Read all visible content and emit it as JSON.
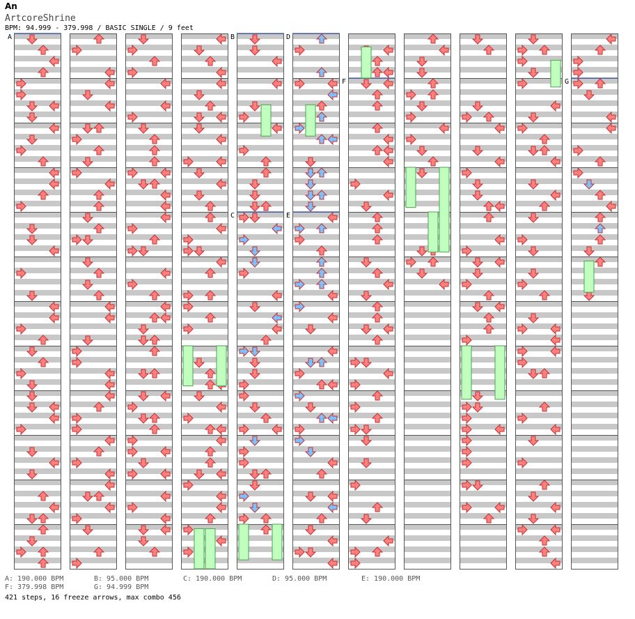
{
  "header": {
    "title": "An",
    "artist": "ArtcoreShrine",
    "info": "BPM: 94.999 - 379.998 / BASIC SINGLE / 9 feet"
  },
  "columns": 11,
  "measures_per_column": 12,
  "section_markers": [
    {
      "label": "A",
      "col": 0,
      "measure": 0
    },
    {
      "label": "B",
      "col": 4,
      "measure": 0
    },
    {
      "label": "D",
      "col": 5,
      "measure": 0
    },
    {
      "label": "F",
      "col": 6,
      "measure": 1
    },
    {
      "label": "G",
      "col": 10,
      "measure": 1
    },
    {
      "label": "C",
      "col": 4,
      "measure": 4
    },
    {
      "label": "E",
      "col": 5,
      "measure": 4
    }
  ],
  "bpm_legend": [
    [
      "A: 190.000 BPM",
      "B: 95.000 BPM",
      "C: 190.000 BPM",
      "D: 95.000 BPM",
      "E: 190.000 BPM"
    ],
    [
      "F: 379.998 BPM",
      "G: 94.999 BPM"
    ]
  ],
  "summary": "421 steps, 16 freeze arrows, max combo 456",
  "colors": {
    "arrow_red": "#ff8080",
    "arrow_blue": "#80c0ff",
    "arrow_pink": "#ffa0ff",
    "arrow_yellow": "#ffff40",
    "freeze": "#c0ffc0",
    "stripe": "#c8c8c8"
  },
  "icon_names": [
    "up-arrow-icon",
    "down-arrow-icon",
    "left-arrow-icon",
    "right-arrow-icon",
    "freeze-arrow-icon"
  ]
}
